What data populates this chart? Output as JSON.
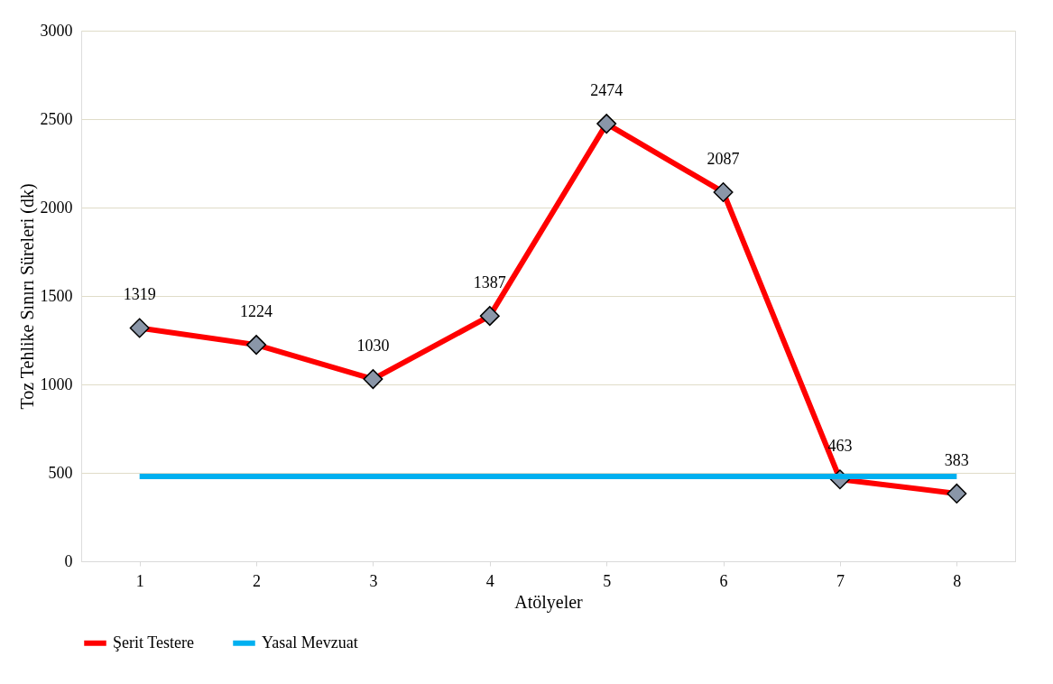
{
  "chart_data": {
    "type": "line",
    "xlabel": "Atölyeler",
    "ylabel": "Toz Tehlike Sınırı Süreleri (dk)",
    "categories": [
      "1",
      "2",
      "3",
      "4",
      "5",
      "6",
      "7",
      "8"
    ],
    "series": [
      {
        "name": "Şerit Testere",
        "color": "#ff0000",
        "marker": "diamond",
        "values": [
          1319,
          1224,
          1030,
          1387,
          2474,
          2087,
          463,
          383
        ],
        "value_labels": [
          "1319",
          "1224",
          "1030",
          "1387",
          "2474",
          "2087",
          "463",
          "383"
        ]
      },
      {
        "name": "Yasal Mevzuat",
        "color": "#00b0f0",
        "marker": "none",
        "values": [
          480,
          480,
          480,
          480,
          480,
          480,
          480,
          480
        ]
      }
    ],
    "ylim": [
      0,
      3000
    ],
    "yticks": [
      0,
      500,
      1000,
      1500,
      2000,
      2500,
      3000
    ],
    "grid": "y",
    "legend": "bottom",
    "line_style": "solid"
  }
}
